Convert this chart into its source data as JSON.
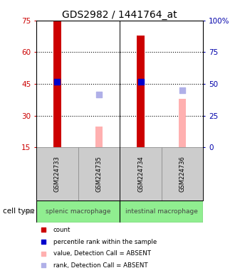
{
  "title": "GDS2982 / 1441764_at",
  "samples": [
    "GSM224733",
    "GSM224735",
    "GSM224734",
    "GSM224736"
  ],
  "count_values": [
    75,
    null,
    68,
    null
  ],
  "count_color": "#cc0000",
  "percentile_values": [
    46,
    null,
    46,
    null
  ],
  "percentile_color": "#0000cc",
  "absent_value_bars": [
    null,
    25,
    null,
    38
  ],
  "absent_value_color": "#ffb0b0",
  "absent_rank_dots": [
    null,
    40,
    null,
    42
  ],
  "absent_rank_color": "#b0b0e8",
  "ylim_left": [
    15,
    75
  ],
  "ylim_right": [
    0,
    100
  ],
  "yticks_left": [
    15,
    30,
    45,
    60,
    75
  ],
  "yticks_right": [
    0,
    25,
    50,
    75,
    100
  ],
  "ytick_labels_right": [
    "0",
    "25",
    "50",
    "75",
    "100%"
  ],
  "grid_yticks": [
    30,
    45,
    60
  ],
  "bar_width": 0.18,
  "dot_size": 28,
  "title_fontsize": 10,
  "axis_fontsize": 7.5,
  "axis_label_color_left": "#cc0000",
  "axis_label_color_right": "#0000aa",
  "background_color": "#ffffff",
  "sample_box_color": "#cccccc",
  "cell_type_color": "#90ee90",
  "cell_type_labels": [
    "splenic macrophage",
    "intestinal macrophage"
  ],
  "legend_colors": [
    "#cc0000",
    "#0000cc",
    "#ffb0b0",
    "#b0b0e8"
  ],
  "legend_labels": [
    "count",
    "percentile rank within the sample",
    "value, Detection Call = ABSENT",
    "rank, Detection Call = ABSENT"
  ],
  "x_positions": [
    0.5,
    1.5,
    2.5,
    3.5
  ],
  "x_divider": 2.0,
  "xlim": [
    0,
    4
  ]
}
